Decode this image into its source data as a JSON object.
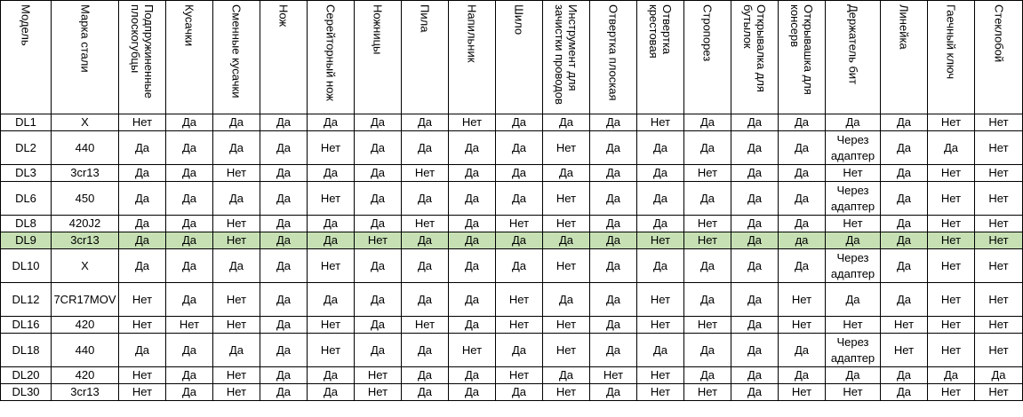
{
  "table": {
    "headers": [
      "Модель",
      "Марка стали",
      "Подпружиненные плоскогубцы",
      "Кусачки",
      "Сменные кусачки",
      "Нож",
      "Серейторный нож",
      "Ножницы",
      "Пила",
      "Напильник",
      "Шило",
      "Инструмент для зачистки проводов",
      "Отвертка плоская",
      "Отвертка крестовая",
      "Стропорез",
      "Открывалка для бутылок",
      "Открывашка для консерв",
      "Держатель бит",
      "Линейка",
      "Гаечный ключ",
      "Стеклобой"
    ],
    "rows": [
      [
        "DL1",
        "X",
        "Нет",
        "Да",
        "Да",
        "Да",
        "Да",
        "Да",
        "Да",
        "Нет",
        "Да",
        "Да",
        "Да",
        "Нет",
        "Да",
        "Да",
        "Да",
        "Да",
        "Да",
        "Нет",
        "Нет"
      ],
      [
        "DL2",
        "440",
        "Да",
        "Да",
        "Да",
        "Да",
        "Нет",
        "Да",
        "Да",
        "Да",
        "Да",
        "Нет",
        "Да",
        "Да",
        "Да",
        "Да",
        "Да",
        "Через адаптер",
        "Да",
        "Да",
        "Нет"
      ],
      [
        "DL3",
        "3cr13",
        "Да",
        "Да",
        "Нет",
        "Да",
        "Да",
        "Да",
        "Нет",
        "Да",
        "Да",
        "Да",
        "Да",
        "Да",
        "Нет",
        "Да",
        "Да",
        "Нет",
        "Да",
        "Нет",
        "Нет"
      ],
      [
        "DL6",
        "450",
        "Да",
        "Да",
        "Да",
        "Да",
        "Нет",
        "Да",
        "Да",
        "Да",
        "Да",
        "Нет",
        "Да",
        "Да",
        "Да",
        "Да",
        "Да",
        "Через адаптер",
        "Да",
        "Нет",
        "Нет"
      ],
      [
        "DL8",
        "420J2",
        "Да",
        "Да",
        "Нет",
        "Да",
        "Да",
        "Да",
        "Нет",
        "Да",
        "Нет",
        "Нет",
        "Да",
        "Да",
        "Нет",
        "Да",
        "Да",
        "Нет",
        "Да",
        "Нет",
        "Нет"
      ],
      [
        "DL9",
        "3cr13",
        "Да",
        "Да",
        "Нет",
        "Да",
        "Да",
        "Нет",
        "Да",
        "Да",
        "Да",
        "Да",
        "Да",
        "Нет",
        "Нет",
        "Да",
        "да",
        "Да",
        "Да",
        "Нет",
        "Нет"
      ],
      [
        "DL10",
        "X",
        "Да",
        "Да",
        "Да",
        "Да",
        "Нет",
        "Да",
        "Да",
        "Да",
        "Да",
        "Нет",
        "Да",
        "Да",
        "Да",
        "Да",
        "Да",
        "Через адаптер",
        "Да",
        "Нет",
        "Нет"
      ],
      [
        "DL12",
        "7CR17MOV",
        "Нет",
        "Да",
        "Нет",
        "Да",
        "Да",
        "Да",
        "Да",
        "Да",
        "Нет",
        "Да",
        "Да",
        "Нет",
        "Да",
        "Да",
        "Нет",
        "Да",
        "Да",
        "Нет",
        "Нет"
      ],
      [
        "DL16",
        "420",
        "Нет",
        "Нет",
        "Нет",
        "Да",
        "Нет",
        "Да",
        "Нет",
        "Да",
        "Нет",
        "Нет",
        "Да",
        "Нет",
        "Нет",
        "Да",
        "Нет",
        "Нет",
        "Нет",
        "Нет",
        "Нет"
      ],
      [
        "DL18",
        "440",
        "Да",
        "Да",
        "Да",
        "Да",
        "Нет",
        "Да",
        "Да",
        "Нет",
        "Да",
        "Нет",
        "Да",
        "Да",
        "Да",
        "Да",
        "Да",
        "Через адаптер",
        "Нет",
        "Нет",
        "Нет"
      ],
      [
        "DL20",
        "420",
        "Нет",
        "Да",
        "Нет",
        "Да",
        "Да",
        "Нет",
        "Да",
        "Да",
        "Нет",
        "Да",
        "Нет",
        "Нет",
        "Да",
        "Да",
        "Да",
        "Да",
        "Да",
        "Да",
        "Да"
      ],
      [
        "DL30",
        "3cr13",
        "Нет",
        "Да",
        "Нет",
        "Да",
        "Да",
        "Нет",
        "Да",
        "Да",
        "Да",
        "Нет",
        "Да",
        "Нет",
        "Нет",
        "Да",
        "Нет",
        "Нет",
        "Да",
        "Нет",
        "Нет"
      ]
    ],
    "row_heights": [
      19,
      38,
      19,
      38,
      19,
      19,
      38,
      38,
      19,
      38,
      19,
      19
    ],
    "highlight_row": 5,
    "highlight_color": "#c6e0b4"
  }
}
